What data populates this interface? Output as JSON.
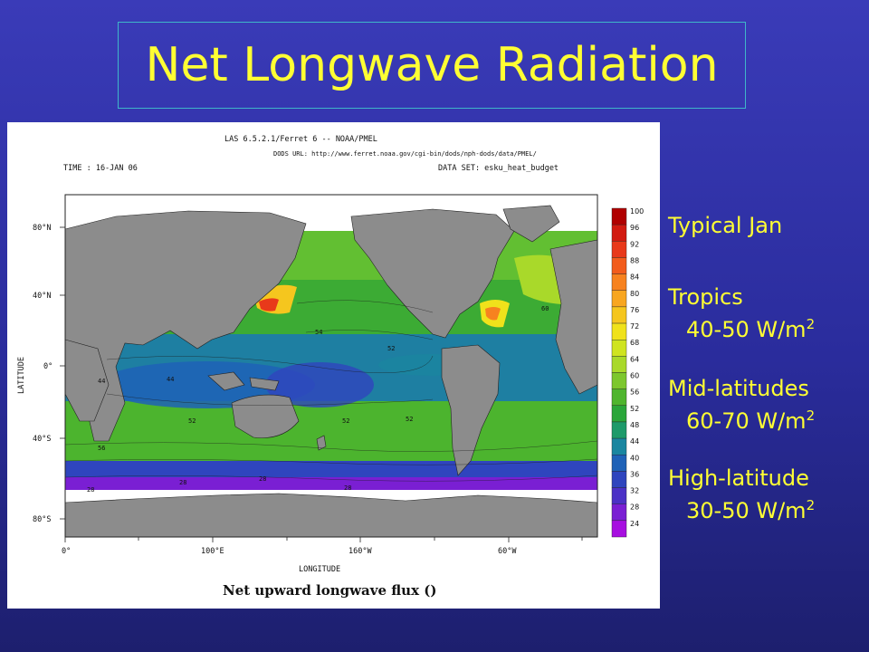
{
  "slide": {
    "title": "Net Longwave Radiation",
    "accent_color": "#ffff33",
    "background_color": "#2a2c9c"
  },
  "plot_header": {
    "software": "LAS 6.5.2.1/Ferret 6  --  NOAA/PMEL",
    "dods_url": "DODS URL: http://www.ferret.noaa.gov/cgi-bin/dods/nph-dods/data/PMEL/",
    "time_label": "TIME : 16-JAN 06",
    "dataset_label": "DATA SET: esku_heat_budget"
  },
  "plot_axes": {
    "x_label": "LONGITUDE",
    "y_label": "LATITUDE",
    "x_ticks": [
      "0°",
      "100°E",
      "160°W",
      "60°W"
    ],
    "y_ticks": [
      "80°N",
      "40°N",
      "0°",
      "40°S",
      "80°S"
    ]
  },
  "plot_caption": "Net upward longwave flux ()",
  "colorbar": {
    "levels": [
      "100",
      "96",
      "92",
      "88",
      "84",
      "80",
      "76",
      "72",
      "68",
      "64",
      "60",
      "56",
      "52",
      "48",
      "44",
      "40",
      "36",
      "32",
      "28",
      "24"
    ],
    "colors": [
      "#b00000",
      "#d21a10",
      "#e8391a",
      "#f25c1c",
      "#f7821f",
      "#f8a620",
      "#f5c61e",
      "#f0e21b",
      "#cfe420",
      "#a9d92a",
      "#7dc72e",
      "#4fb52e",
      "#2aa63a",
      "#1e9a6a",
      "#1a86a0",
      "#1f62b7",
      "#2f45be",
      "#4b31c6",
      "#7a1fd3",
      "#a70fe0"
    ]
  },
  "contour_labels": [
    "52",
    "60",
    "44",
    "54",
    "52",
    "52",
    "28",
    "28",
    "28",
    "28",
    "56",
    "52",
    "44"
  ],
  "annotations": {
    "heading": "Typical Jan",
    "tropics_label": "Tropics",
    "tropics_value": "40-50 W/m",
    "mid_label": "Mid-latitudes",
    "mid_value": "60-70 W/m",
    "high_label": "High-latitude",
    "high_value": "30-50 W/m",
    "unit_exponent": "2"
  }
}
